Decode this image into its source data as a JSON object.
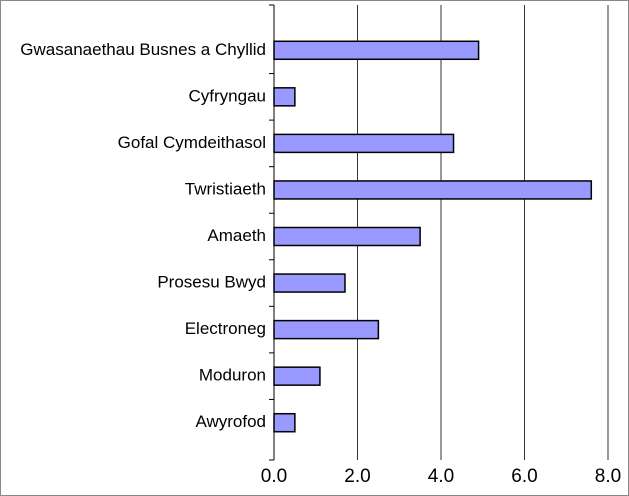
{
  "chart_data": {
    "type": "bar",
    "orientation": "horizontal",
    "categories": [
      "Gwasanaethau Busnes a Chyllid",
      "Cyfryngau",
      "Gofal Cymdeithasol",
      "Twristiaeth",
      "Amaeth",
      "Prosesu Bwyd",
      "Electroneg",
      "Moduron",
      "Awyrofod"
    ],
    "values": [
      4.9,
      0.5,
      4.3,
      7.6,
      3.5,
      1.7,
      2.5,
      1.1,
      0.5
    ],
    "color": "#9999ff",
    "xlim": [
      0,
      8
    ],
    "xticks": [
      {
        "value": 0,
        "label": "0.0"
      },
      {
        "value": 2,
        "label": "2.0"
      },
      {
        "value": 4,
        "label": "4.0"
      },
      {
        "value": 6,
        "label": "6.0"
      },
      {
        "value": 8,
        "label": "8.0"
      }
    ],
    "grid": true
  }
}
